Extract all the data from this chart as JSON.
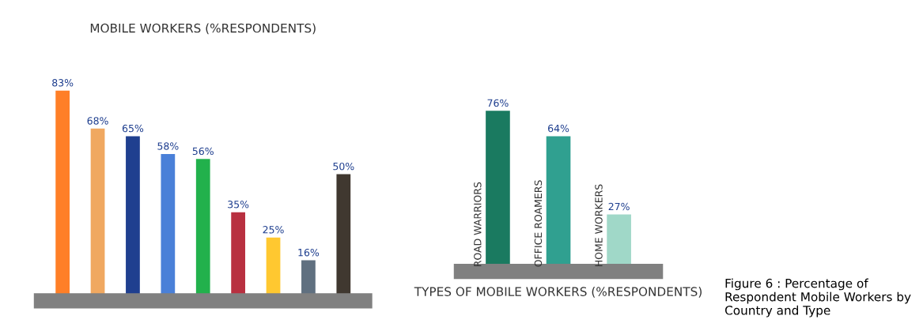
{
  "chart_data": [
    {
      "type": "bar",
      "title": "MOBILE WORKERS (%RESPONDENTS)",
      "categories": [
        null,
        null,
        null,
        null,
        null,
        null,
        null,
        null,
        null
      ],
      "values": [
        83,
        68,
        65,
        58,
        56,
        35,
        25,
        16,
        50
      ],
      "colors": [
        "#ff7f27",
        "#f0a860",
        "#1f3f8f",
        "#4a80d8",
        "#22b14c",
        "#b83040",
        "#ffc830",
        "#607080",
        "#403830"
      ],
      "value_labels": [
        "83%",
        "68%",
        "65%",
        "58%",
        "56%",
        "35%",
        "25%",
        "16%",
        "50%"
      ]
    },
    {
      "type": "bar",
      "xlabel": "TYPES OF MOBILE WORKERS (%RESPONDENTS)",
      "categories": [
        "ROAD WARRIORS",
        "OFFICE ROAMERS",
        "HOME WORKERS"
      ],
      "values": [
        76,
        64,
        27
      ],
      "colors": [
        "#1a7a60",
        "#30a090",
        "#a0d8c8"
      ],
      "value_labels": [
        "76%",
        "64%",
        "27%"
      ],
      "annotations": [
        "Figure 6 : Percentage of Respondent Mobile Workers by Country and Type"
      ]
    }
  ]
}
